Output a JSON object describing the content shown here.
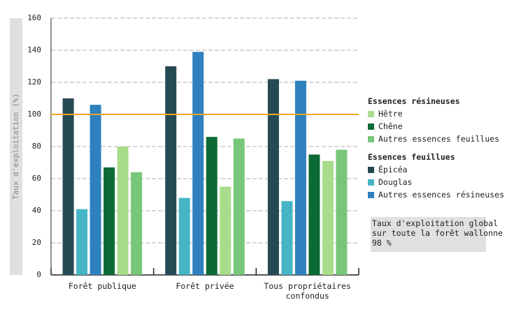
{
  "chart_data": {
    "type": "bar",
    "y_label": "Taux d'exploitation (%)",
    "categories": [
      "Forêt publique",
      "Forêt privée",
      "Tous propriétaires confondus"
    ],
    "series": [
      {
        "name": "Épicéa",
        "color": "#264a53",
        "values": [
          110,
          130,
          122
        ]
      },
      {
        "name": "Douglas",
        "color": "#45b5c6",
        "values": [
          41,
          48,
          46
        ]
      },
      {
        "name": "Autres essences résineuses",
        "color": "#2f80bf",
        "values": [
          106,
          139,
          121
        ]
      },
      {
        "name": "Chêne",
        "color": "#0c6a36",
        "values": [
          67,
          86,
          75
        ]
      },
      {
        "name": "Hêtre",
        "color": "#a8dc8b",
        "values": [
          80,
          55,
          71
        ]
      },
      {
        "name": "Autres essences feuillues",
        "color": "#78c679",
        "values": [
          64,
          85,
          78
        ]
      }
    ],
    "legend_groups": [
      {
        "title": "Essences résineuses",
        "members": [
          4,
          3,
          5
        ]
      },
      {
        "title": "Essences feuillues",
        "members": [
          0,
          1,
          2
        ]
      }
    ],
    "reference_line": {
      "value": 100,
      "color": "#f5a623"
    },
    "annotation": [
      "Taux d'exploitation global",
      "sur toute la forêt wallonne",
      "98 %"
    ],
    "ylim": [
      0,
      160
    ],
    "yticks": [
      0,
      20,
      40,
      60,
      80,
      100,
      120,
      140,
      160
    ],
    "grid": true
  }
}
